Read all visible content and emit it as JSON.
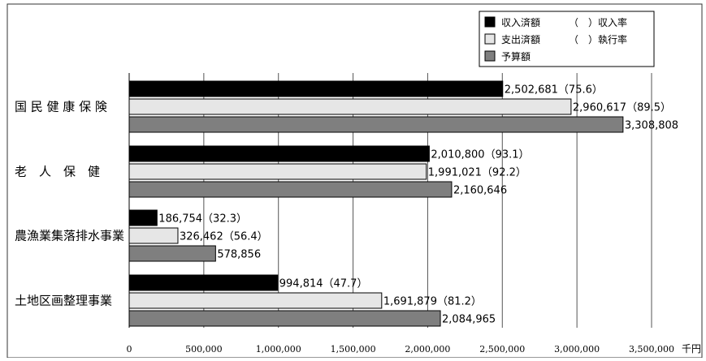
{
  "chart_data": {
    "type": "bar",
    "orientation": "horizontal",
    "categories": [
      "国民健康保険",
      "老人保健",
      "農漁業集落排水事業",
      "土地区画整理事業"
    ],
    "category_labels": [
      "国 民 健 康 保 険",
      "老　人　保　健",
      "農漁業集落排水事業",
      "土地区画整理事業"
    ],
    "series": [
      {
        "name": "収入済額",
        "rate_label": "（　）収入率",
        "color": "#000000",
        "values": [
          2502681,
          2010800,
          186754,
          994814
        ],
        "labels": [
          "2,502,681（75.6）",
          "2,010,800（93.1）",
          "186,754（32.3）",
          "994,814（47.7）"
        ]
      },
      {
        "name": "支出済額",
        "rate_label": "（　）執行率",
        "color": "#e6e6e6",
        "values": [
          2960617,
          1991021,
          326462,
          1691879
        ],
        "labels": [
          "2,960,617（89.5）",
          "1,991,021（92.2）",
          "326,462（56.4）",
          "1,691,879（81.2）"
        ]
      },
      {
        "name": "予算額",
        "rate_label": "",
        "color": "#7f7f7f",
        "values": [
          3308808,
          2160646,
          578856,
          2084965
        ],
        "labels": [
          "3,308,808",
          "2,160,646",
          "578,856",
          "2,084,965"
        ]
      }
    ],
    "xlim": [
      0,
      3500000
    ],
    "x_ticks": [
      0,
      500000,
      1000000,
      1500000,
      2000000,
      2500000,
      3000000,
      3500000
    ],
    "x_tick_labels": [
      "0",
      "500,000",
      "1,000,000",
      "1,500,000",
      "2,000,000",
      "2,500,000",
      "3,000,000",
      "3,500,000"
    ],
    "x_unit": "千円",
    "grid": "vertical",
    "legend_position": "top-right"
  }
}
